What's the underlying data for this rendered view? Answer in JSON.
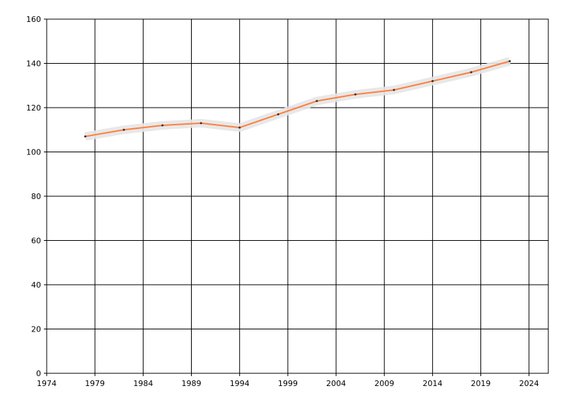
{
  "chart_data": {
    "type": "line",
    "x": [
      1978,
      1982,
      1986,
      1990,
      1994,
      1998,
      2002,
      2006,
      2010,
      2014,
      2018,
      2022
    ],
    "series": [
      {
        "color": "#ff7f3f",
        "values": [
          107,
          110,
          112,
          113,
          111,
          117,
          123,
          126,
          128,
          132,
          136,
          141
        ]
      }
    ],
    "xlim": [
      1974,
      2026
    ],
    "ylim": [
      0,
      160
    ],
    "xticks": [
      1974,
      1979,
      1984,
      1989,
      1994,
      1999,
      2004,
      2009,
      2014,
      2019,
      2024
    ],
    "yticks": [
      0,
      20,
      40,
      60,
      80,
      100,
      120,
      140,
      160
    ],
    "grid": true
  }
}
